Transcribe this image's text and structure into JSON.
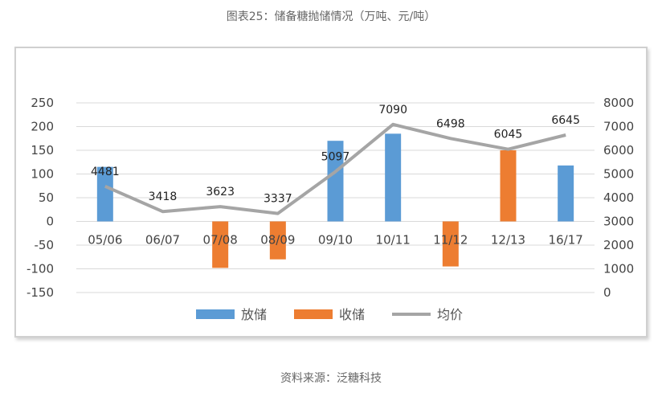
{
  "caption": "图表25：储备糖抛储情况（万吨、元/吨）",
  "source": "资料来源：泛糖科技",
  "chart_data": {
    "type": "bar",
    "categories": [
      "05/06",
      "06/07",
      "07/08",
      "08/09",
      "09/10",
      "10/11",
      "11/12",
      "12/13",
      "16/17"
    ],
    "series": [
      {
        "name": "放储",
        "type": "bar",
        "axis": "left",
        "color": "#5B9BD5",
        "values": [
          115,
          null,
          null,
          null,
          170,
          185,
          null,
          15,
          118
        ]
      },
      {
        "name": "收储",
        "type": "bar",
        "axis": "left",
        "color": "#ED7D31",
        "values": [
          null,
          null,
          -98,
          -80,
          null,
          null,
          -95,
          150,
          null
        ]
      },
      {
        "name": "均价",
        "type": "line",
        "axis": "right",
        "color": "#A5A5A5",
        "values": [
          4481,
          3418,
          3623,
          3337,
          5097,
          7090,
          6498,
          6045,
          6645
        ]
      }
    ],
    "line_labels": [
      "4481",
      "3418",
      "3623",
      "3337",
      "5097",
      "7090",
      "6498",
      "6045",
      "6645"
    ],
    "y_left": {
      "min": -150,
      "max": 250,
      "ticks": [
        250,
        200,
        150,
        100,
        50,
        0,
        -50,
        -100,
        -150
      ]
    },
    "y_right": {
      "min": 0,
      "max": 8000,
      "ticks": [
        8000,
        7000,
        6000,
        5000,
        4000,
        3000,
        2000,
        1000,
        0
      ]
    },
    "grid": true,
    "legend_position": "bottom",
    "title": "",
    "xlabel": "",
    "ylabel": ""
  }
}
